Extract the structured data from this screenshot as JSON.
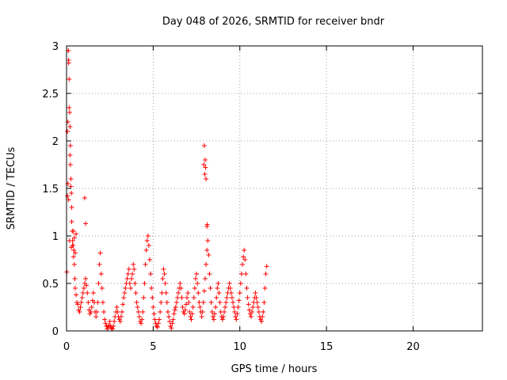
{
  "chart_data": {
    "type": "scatter",
    "title": "Day 048 of 2026, SRMTID for receiver bndr",
    "xlabel": "GPS time / hours",
    "ylabel": "SRMTID / TECUs",
    "xlim": [
      0,
      24
    ],
    "ylim": [
      0,
      3
    ],
    "xticks": [
      0,
      5,
      10,
      15,
      20
    ],
    "yticks": [
      0,
      0.5,
      1,
      1.5,
      2,
      2.5,
      3
    ],
    "xtick_labels": [
      "0",
      "5",
      "10",
      "15",
      "20"
    ],
    "ytick_labels": [
      "0",
      "0.5",
      "1",
      "1.5",
      "2",
      "2.5",
      "3"
    ],
    "grid": true,
    "marker": "+",
    "series": [
      {
        "name": "SRMTID",
        "color": "#ff0000",
        "x": [
          0.02,
          0.05,
          0.08,
          0.1,
          0.12,
          0.15,
          0.18,
          0.2,
          0.22,
          0.25,
          0.28,
          0.3,
          0.33,
          0.35,
          0.38,
          0.4,
          0.42,
          0.45,
          0.48,
          0.5,
          0.55,
          0.6,
          0.65,
          0.7,
          0.75,
          0.8,
          0.85,
          0.9,
          0.95,
          1.0,
          1.05,
          1.1,
          1.15,
          1.2,
          1.25,
          1.3,
          1.35,
          1.4,
          1.45,
          1.5,
          1.55,
          1.6,
          1.65,
          1.7,
          1.75,
          1.8,
          1.85,
          1.9,
          1.95,
          2.0,
          2.05,
          2.1,
          2.15,
          2.2,
          2.25,
          2.3,
          2.35,
          2.4,
          2.45,
          2.5,
          2.55,
          2.6,
          2.65,
          2.7,
          2.75,
          2.8,
          2.85,
          2.9,
          2.95,
          3.0,
          3.05,
          3.1,
          3.15,
          3.2,
          3.25,
          3.3,
          3.35,
          3.4,
          3.45,
          3.5,
          3.55,
          3.6,
          3.65,
          3.7,
          3.75,
          3.8,
          3.85,
          3.9,
          3.95,
          4.0,
          4.05,
          4.1,
          4.15,
          4.2,
          4.25,
          4.3,
          4.35,
          4.4,
          4.45,
          4.5,
          4.55,
          4.6,
          4.65,
          4.7,
          4.75,
          4.8,
          4.85,
          4.9,
          4.95,
          5.0,
          5.05,
          5.1,
          5.15,
          5.2,
          5.25,
          5.3,
          5.35,
          5.4,
          5.45,
          5.5,
          5.55,
          5.6,
          5.65,
          5.7,
          5.75,
          5.8,
          5.85,
          5.9,
          5.95,
          6.0,
          6.05,
          6.1,
          6.15,
          6.2,
          6.25,
          6.3,
          6.35,
          6.4,
          6.45,
          6.5,
          6.55,
          6.6,
          6.65,
          6.7,
          6.75,
          6.8,
          6.85,
          6.9,
          6.95,
          7.0,
          7.05,
          7.1,
          7.15,
          7.2,
          7.25,
          7.3,
          7.35,
          7.4,
          7.45,
          7.5,
          7.55,
          7.6,
          7.65,
          7.7,
          7.75,
          7.8,
          7.85,
          7.9,
          7.95,
          8.0,
          8.05,
          8.1,
          8.15,
          8.2,
          8.25,
          8.3,
          8.35,
          8.4,
          8.45,
          8.5,
          8.55,
          8.6,
          8.65,
          8.7,
          8.75,
          8.8,
          8.85,
          8.9,
          8.95,
          9.0,
          9.05,
          9.1,
          9.15,
          9.2,
          9.25,
          9.3,
          9.35,
          9.4,
          9.45,
          9.5,
          9.55,
          9.6,
          9.65,
          9.7,
          9.75,
          9.8,
          9.85,
          9.9,
          9.95,
          10.0,
          10.05,
          10.1,
          10.15,
          10.2,
          10.25,
          10.3,
          10.35,
          10.4,
          10.45,
          10.5,
          10.55,
          10.6,
          10.65,
          10.7,
          10.75,
          10.8,
          10.85,
          10.9,
          10.95,
          11.0,
          11.05,
          11.1,
          11.15,
          11.2,
          11.25,
          11.3,
          11.35,
          11.4,
          11.45,
          11.5,
          11.55,
          0.1,
          0.12,
          0.15,
          0.2,
          0.22,
          0.25,
          0.3,
          0.05,
          0.08,
          0.12,
          0.18,
          0.28,
          0.35,
          0.4,
          0.45,
          0.5,
          0.55,
          1.05,
          1.1,
          7.95,
          8.0,
          8.02,
          7.98,
          8.05,
          7.92,
          8.1,
          8.12
        ],
        "y": [
          0.62,
          2.1,
          2.2,
          2.95,
          2.85,
          2.65,
          2.3,
          2.15,
          1.95,
          1.6,
          1.45,
          1.3,
          1.05,
          0.95,
          0.9,
          0.78,
          0.85,
          0.7,
          0.55,
          0.45,
          0.38,
          0.3,
          0.28,
          0.22,
          0.2,
          0.25,
          0.3,
          0.35,
          0.4,
          0.45,
          0.5,
          0.55,
          0.48,
          0.4,
          0.3,
          0.22,
          0.18,
          0.2,
          0.25,
          0.32,
          0.4,
          0.3,
          0.2,
          0.15,
          0.2,
          0.3,
          0.5,
          0.7,
          0.82,
          0.6,
          0.45,
          0.3,
          0.2,
          0.12,
          0.08,
          0.05,
          0.02,
          0.04,
          0.06,
          0.1,
          0.05,
          0.03,
          0.02,
          0.05,
          0.1,
          0.15,
          0.2,
          0.25,
          0.2,
          0.15,
          0.12,
          0.1,
          0.15,
          0.2,
          0.28,
          0.35,
          0.4,
          0.45,
          0.5,
          0.55,
          0.6,
          0.65,
          0.5,
          0.45,
          0.55,
          0.6,
          0.7,
          0.65,
          0.5,
          0.4,
          0.3,
          0.25,
          0.2,
          0.15,
          0.1,
          0.08,
          0.12,
          0.2,
          0.35,
          0.5,
          0.7,
          0.85,
          0.95,
          1.0,
          0.9,
          0.75,
          0.6,
          0.45,
          0.35,
          0.25,
          0.18,
          0.12,
          0.08,
          0.05,
          0.04,
          0.08,
          0.12,
          0.2,
          0.3,
          0.4,
          0.55,
          0.65,
          0.6,
          0.5,
          0.4,
          0.3,
          0.2,
          0.15,
          0.1,
          0.05,
          0.03,
          0.08,
          0.12,
          0.18,
          0.22,
          0.25,
          0.3,
          0.35,
          0.4,
          0.45,
          0.5,
          0.45,
          0.35,
          0.25,
          0.2,
          0.18,
          0.22,
          0.28,
          0.35,
          0.4,
          0.3,
          0.2,
          0.15,
          0.12,
          0.18,
          0.25,
          0.35,
          0.45,
          0.55,
          0.6,
          0.5,
          0.4,
          0.3,
          0.25,
          0.2,
          0.15,
          0.2,
          0.3,
          0.42,
          0.55,
          0.7,
          0.85,
          0.95,
          0.8,
          0.6,
          0.45,
          0.3,
          0.2,
          0.15,
          0.12,
          0.18,
          0.25,
          0.35,
          0.45,
          0.5,
          0.4,
          0.3,
          0.2,
          0.15,
          0.12,
          0.15,
          0.2,
          0.25,
          0.3,
          0.35,
          0.4,
          0.45,
          0.5,
          0.45,
          0.4,
          0.35,
          0.3,
          0.25,
          0.2,
          0.15,
          0.12,
          0.18,
          0.25,
          0.32,
          0.4,
          0.5,
          0.6,
          0.7,
          0.78,
          0.85,
          0.75,
          0.6,
          0.45,
          0.35,
          0.28,
          0.22,
          0.18,
          0.15,
          0.2,
          0.25,
          0.3,
          0.35,
          0.4,
          0.35,
          0.3,
          0.25,
          0.2,
          0.15,
          0.12,
          0.1,
          0.15,
          0.2,
          0.3,
          0.45,
          0.6,
          0.68,
          2.95,
          2.82,
          2.35,
          1.85,
          1.75,
          1.52,
          1.15,
          1.42,
          1.55,
          1.38,
          0.95,
          0.88,
          0.9,
          1.05,
          0.98,
          0.82,
          1.02,
          1.4,
          1.13,
          1.95,
          1.8,
          1.72,
          1.65,
          1.6,
          1.75,
          1.1,
          1.12
        ]
      }
    ]
  }
}
